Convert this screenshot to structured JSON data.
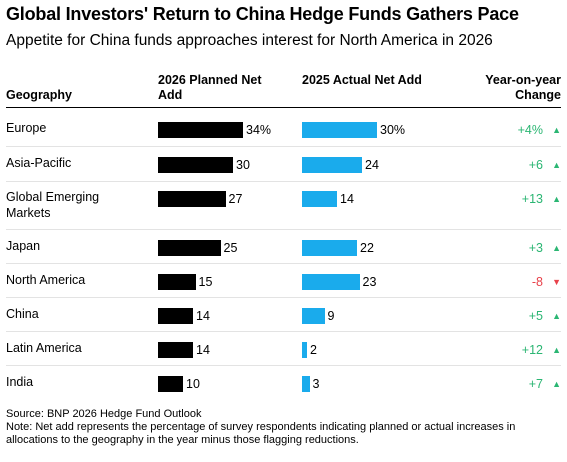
{
  "title": "Global Investors' Return to China Hedge Funds Gathers Pace",
  "subtitle": "Appetite for China funds approaches interest for North America in 2026",
  "headers": {
    "geography": "Geography",
    "planned": "2026 Planned Net Add",
    "actual": "2025 Actual Net Add",
    "yoy": "Year-on-year Change"
  },
  "colors": {
    "planned_bar": "#000000",
    "actual_bar": "#1aabec",
    "positive": "#2bb673",
    "negative": "#e8424b"
  },
  "chart_data": {
    "type": "table",
    "title": "Global Investors' Return to China Hedge Funds Gathers Pace",
    "subtitle": "Appetite for China funds approaches interest for North America in 2026",
    "categories": [
      "Europe",
      "Asia-Pacific",
      "Global Emerging Markets",
      "Japan",
      "North America",
      "China",
      "Latin America",
      "India"
    ],
    "series": [
      {
        "name": "2026 Planned Net Add",
        "values": [
          34,
          30,
          27,
          25,
          15,
          14,
          14,
          10
        ]
      },
      {
        "name": "2025 Actual Net Add",
        "values": [
          30,
          24,
          14,
          22,
          23,
          9,
          2,
          3
        ]
      }
    ],
    "rows": [
      {
        "geography": "Europe",
        "planned": 34,
        "planned_label": "34%",
        "actual": 30,
        "actual_label": "30%",
        "yoy": 4,
        "yoy_label": "+4%",
        "direction": "up",
        "arrow": "▲"
      },
      {
        "geography": "Asia-Pacific",
        "planned": 30,
        "planned_label": "30",
        "actual": 24,
        "actual_label": "24",
        "yoy": 6,
        "yoy_label": "+6",
        "direction": "up",
        "arrow": "▲"
      },
      {
        "geography": "Global Emerging Markets",
        "planned": 27,
        "planned_label": "27",
        "actual": 14,
        "actual_label": "14",
        "yoy": 13,
        "yoy_label": "+13",
        "direction": "up",
        "arrow": "▲"
      },
      {
        "geography": "Japan",
        "planned": 25,
        "planned_label": "25",
        "actual": 22,
        "actual_label": "22",
        "yoy": 3,
        "yoy_label": "+3",
        "direction": "up",
        "arrow": "▲"
      },
      {
        "geography": "North America",
        "planned": 15,
        "planned_label": "15",
        "actual": 23,
        "actual_label": "23",
        "yoy": -8,
        "yoy_label": "-8",
        "direction": "down",
        "arrow": "▼"
      },
      {
        "geography": "China",
        "planned": 14,
        "planned_label": "14",
        "actual": 9,
        "actual_label": "9",
        "yoy": 5,
        "yoy_label": "+5",
        "direction": "up",
        "arrow": "▲"
      },
      {
        "geography": "Latin America",
        "planned": 14,
        "planned_label": "14",
        "actual": 2,
        "actual_label": "2",
        "yoy": 12,
        "yoy_label": "+12",
        "direction": "up",
        "arrow": "▲"
      },
      {
        "geography": "India",
        "planned": 10,
        "planned_label": "10",
        "actual": 3,
        "actual_label": "3",
        "yoy": 7,
        "yoy_label": "+7",
        "direction": "up",
        "arrow": "▲"
      }
    ]
  },
  "footer": {
    "source": "Source: BNP 2026 Hedge Fund Outlook",
    "note": "Note: Net add represents the percentage of survey respondents indicating planned or actual increases in allocations to the geography in the year minus those flagging reductions."
  }
}
